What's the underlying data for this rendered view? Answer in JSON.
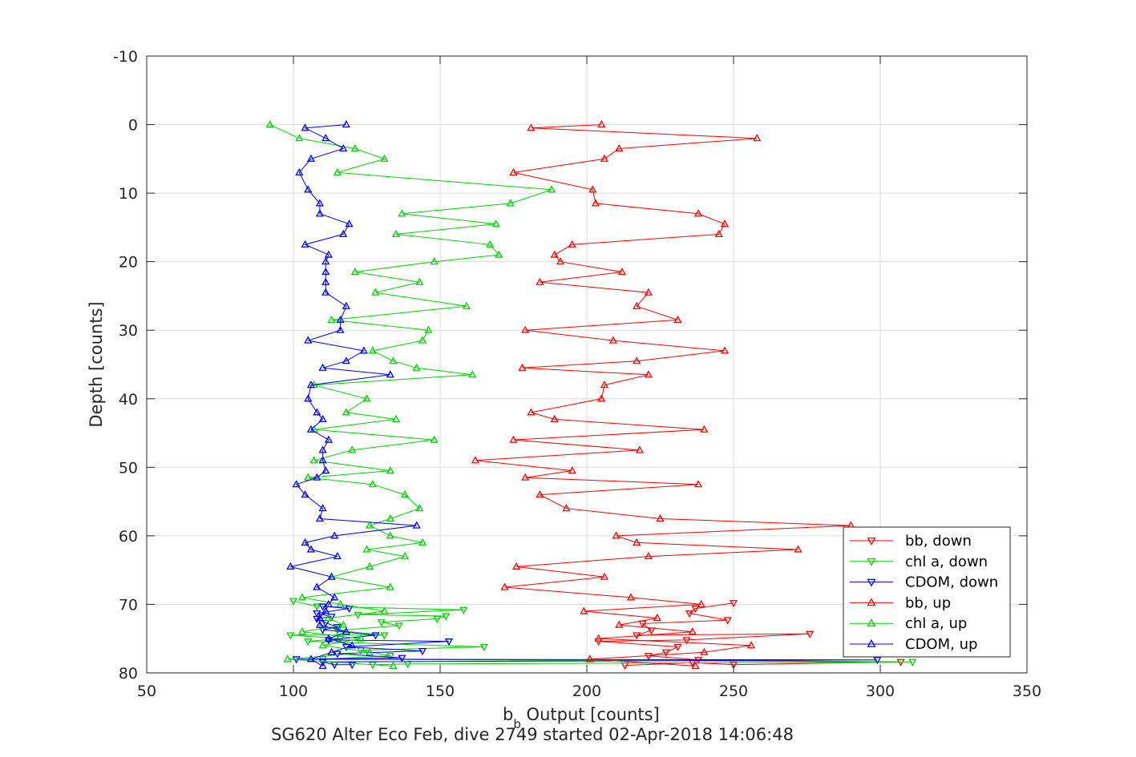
{
  "chart_data": {
    "type": "line",
    "xlabel_main": "b",
    "xlabel_sub": "b",
    "xlabel_rest": " Output [counts]",
    "ylabel": "Depth [counts]",
    "caption": "SG620 Alter Eco Feb, dive 2749 started 02-Apr-2018 14:06:48",
    "xlim": [
      50,
      350
    ],
    "ylim": [
      -10,
      80
    ],
    "y_reversed": true,
    "grid": true,
    "legend_placement": "bottom-right",
    "x_ticks": [
      "50",
      "100",
      "150",
      "200",
      "250",
      "300",
      "350"
    ],
    "y_ticks": [
      "-10",
      "0",
      "10",
      "20",
      "30",
      "40",
      "50",
      "60",
      "70",
      "80"
    ],
    "series": [
      {
        "name": "bb, down",
        "color": "#ff0000",
        "marker": "triangle-down",
        "points": [
          [
            250,
            69.8
          ],
          [
            237,
            70.6
          ],
          [
            235,
            71.3
          ],
          [
            248,
            72.3
          ],
          [
            219,
            72.8
          ],
          [
            222,
            73.8
          ],
          [
            217,
            74.5
          ],
          [
            276,
            74.3
          ],
          [
            234,
            75.2
          ],
          [
            204,
            75.4
          ],
          [
            231,
            76.2
          ],
          [
            227,
            77
          ],
          [
            221,
            77.5
          ],
          [
            238,
            78.1
          ],
          [
            307,
            78.4
          ],
          [
            250,
            78.8
          ],
          [
            236,
            78.5
          ],
          [
            213,
            78.9
          ]
        ]
      },
      {
        "name": "chl a, down",
        "color": "#00d400",
        "marker": "triangle-down",
        "points": [
          [
            100,
            69.5
          ],
          [
            108,
            70.3
          ],
          [
            158,
            70.8
          ],
          [
            122,
            71.5
          ],
          [
            152,
            71.7
          ],
          [
            149,
            72.1
          ],
          [
            130,
            72.6
          ],
          [
            136,
            73.1
          ],
          [
            115,
            73.8
          ],
          [
            131,
            74.5
          ],
          [
            99,
            74.5
          ],
          [
            116,
            75
          ],
          [
            105,
            75.4
          ],
          [
            165,
            76.2
          ],
          [
            123,
            76.7
          ],
          [
            133,
            77.5
          ],
          [
            110,
            78
          ],
          [
            311,
            78.4
          ],
          [
            139,
            78.7
          ],
          [
            127,
            78.8
          ]
        ]
      },
      {
        "name": "CDOM, down",
        "color": "#0000ff",
        "marker": "triangle-down",
        "points": [
          [
            110,
            70.3
          ],
          [
            119,
            70.6
          ],
          [
            108,
            71.3
          ],
          [
            113,
            71.8
          ],
          [
            108,
            72.1
          ],
          [
            111,
            72.7
          ],
          [
            115,
            73.3
          ],
          [
            110,
            73.7
          ],
          [
            128,
            74.5
          ],
          [
            112,
            75.2
          ],
          [
            153,
            75.4
          ],
          [
            118,
            76.2
          ],
          [
            144,
            76.8
          ],
          [
            115,
            77.2
          ],
          [
            137,
            77.8
          ],
          [
            101,
            78
          ],
          [
            299,
            78.1
          ],
          [
            110,
            78.4
          ],
          [
            114,
            78.8
          ],
          [
            120,
            78.8
          ]
        ]
      },
      {
        "name": "bb, up",
        "color": "#ff0000",
        "marker": "triangle-up",
        "points": [
          [
            205,
            0
          ],
          [
            181,
            0.5
          ],
          [
            258,
            2
          ],
          [
            211,
            3.5
          ],
          [
            206,
            5
          ],
          [
            175,
            7
          ],
          [
            202,
            9.5
          ],
          [
            203,
            11.5
          ],
          [
            238,
            13
          ],
          [
            247,
            14.5
          ],
          [
            245,
            16
          ],
          [
            195,
            17.5
          ],
          [
            189,
            19
          ],
          [
            191,
            20
          ],
          [
            212,
            21.5
          ],
          [
            184,
            23
          ],
          [
            221,
            24.5
          ],
          [
            217,
            26.5
          ],
          [
            231,
            28.5
          ],
          [
            179,
            30
          ],
          [
            209,
            31.5
          ],
          [
            247,
            33
          ],
          [
            217,
            34.5
          ],
          [
            178,
            35.5
          ],
          [
            221,
            36.5
          ],
          [
            206,
            38
          ],
          [
            205,
            40
          ],
          [
            181,
            42
          ],
          [
            189,
            43
          ],
          [
            240,
            44.5
          ],
          [
            175,
            46
          ],
          [
            218,
            47.5
          ],
          [
            162,
            49
          ],
          [
            195,
            50.5
          ],
          [
            179,
            51.5
          ],
          [
            238,
            52.5
          ],
          [
            184,
            54
          ],
          [
            193,
            56
          ],
          [
            225,
            57.5
          ],
          [
            290,
            58.5
          ],
          [
            210,
            60
          ],
          [
            217,
            61
          ],
          [
            272,
            62
          ],
          [
            221,
            63
          ],
          [
            176,
            64.5
          ],
          [
            206,
            66
          ],
          [
            172,
            67.5
          ],
          [
            215,
            69
          ],
          [
            239,
            70
          ],
          [
            199,
            71
          ],
          [
            224,
            72
          ],
          [
            211,
            73
          ],
          [
            236,
            74
          ],
          [
            204,
            75
          ],
          [
            256,
            76
          ],
          [
            240,
            77
          ],
          [
            201,
            78
          ],
          [
            237,
            79
          ]
        ]
      },
      {
        "name": "chl a, up",
        "color": "#00d400",
        "marker": "triangle-up",
        "points": [
          [
            92,
            0
          ],
          [
            102,
            2
          ],
          [
            121,
            3.5
          ],
          [
            131,
            5
          ],
          [
            115,
            7
          ],
          [
            188,
            9.5
          ],
          [
            174,
            11.5
          ],
          [
            137,
            13
          ],
          [
            169,
            14.5
          ],
          [
            135,
            16
          ],
          [
            167,
            17.5
          ],
          [
            170,
            19
          ],
          [
            148,
            20
          ],
          [
            121,
            21.5
          ],
          [
            143,
            23
          ],
          [
            128,
            24.5
          ],
          [
            159,
            26.5
          ],
          [
            113,
            28.5
          ],
          [
            146,
            30
          ],
          [
            144,
            31.5
          ],
          [
            127,
            33
          ],
          [
            134,
            34.5
          ],
          [
            142,
            35.5
          ],
          [
            161,
            36.5
          ],
          [
            107,
            38
          ],
          [
            125,
            40
          ],
          [
            118,
            42
          ],
          [
            135,
            43
          ],
          [
            107,
            44.5
          ],
          [
            148,
            46
          ],
          [
            120,
            47.5
          ],
          [
            107,
            49
          ],
          [
            133,
            50.5
          ],
          [
            105,
            51.5
          ],
          [
            127,
            52.5
          ],
          [
            138,
            54
          ],
          [
            143,
            56
          ],
          [
            133,
            57.5
          ],
          [
            126,
            58.5
          ],
          [
            133,
            60
          ],
          [
            144,
            61
          ],
          [
            125,
            62
          ],
          [
            138,
            63
          ],
          [
            126,
            64.5
          ],
          [
            113,
            66
          ],
          [
            133,
            67.5
          ],
          [
            103,
            69
          ],
          [
            116,
            70
          ],
          [
            131,
            71
          ],
          [
            112,
            72
          ],
          [
            117,
            73
          ],
          [
            103,
            74
          ],
          [
            123,
            75
          ],
          [
            110,
            76
          ],
          [
            126,
            77
          ],
          [
            98,
            78
          ],
          [
            134,
            79
          ]
        ]
      },
      {
        "name": "CDOM, up",
        "color": "#0000ff",
        "marker": "triangle-up",
        "points": [
          [
            118,
            0
          ],
          [
            104,
            0.5
          ],
          [
            111,
            2
          ],
          [
            117,
            3.5
          ],
          [
            106,
            5
          ],
          [
            102,
            7
          ],
          [
            105,
            9.5
          ],
          [
            109,
            11.5
          ],
          [
            109,
            13
          ],
          [
            119,
            14.5
          ],
          [
            117,
            16
          ],
          [
            104,
            17.5
          ],
          [
            112,
            19
          ],
          [
            111,
            20
          ],
          [
            111,
            21.5
          ],
          [
            111,
            23
          ],
          [
            111,
            24.5
          ],
          [
            118,
            26.5
          ],
          [
            116,
            28.5
          ],
          [
            116,
            30
          ],
          [
            105,
            31.5
          ],
          [
            124,
            33
          ],
          [
            118,
            34.5
          ],
          [
            110,
            35.5
          ],
          [
            133,
            36.5
          ],
          [
            106,
            38
          ],
          [
            105,
            40
          ],
          [
            108,
            42
          ],
          [
            110,
            43
          ],
          [
            106,
            44.5
          ],
          [
            112,
            46
          ],
          [
            110,
            47.5
          ],
          [
            110,
            49
          ],
          [
            111,
            50.5
          ],
          [
            108,
            51.5
          ],
          [
            101,
            52.5
          ],
          [
            104,
            54
          ],
          [
            110,
            56
          ],
          [
            109,
            57.5
          ],
          [
            142,
            58.5
          ],
          [
            114,
            60
          ],
          [
            104,
            61
          ],
          [
            106,
            62
          ],
          [
            115,
            63
          ],
          [
            99,
            64.5
          ],
          [
            113,
            66
          ],
          [
            108,
            67.5
          ],
          [
            114,
            69
          ],
          [
            112,
            70
          ],
          [
            111,
            71
          ],
          [
            109,
            72
          ],
          [
            109,
            73
          ],
          [
            118,
            74
          ],
          [
            112,
            75
          ],
          [
            120,
            76
          ],
          [
            113,
            77
          ],
          [
            106,
            78
          ],
          [
            110,
            79
          ]
        ]
      }
    ]
  }
}
